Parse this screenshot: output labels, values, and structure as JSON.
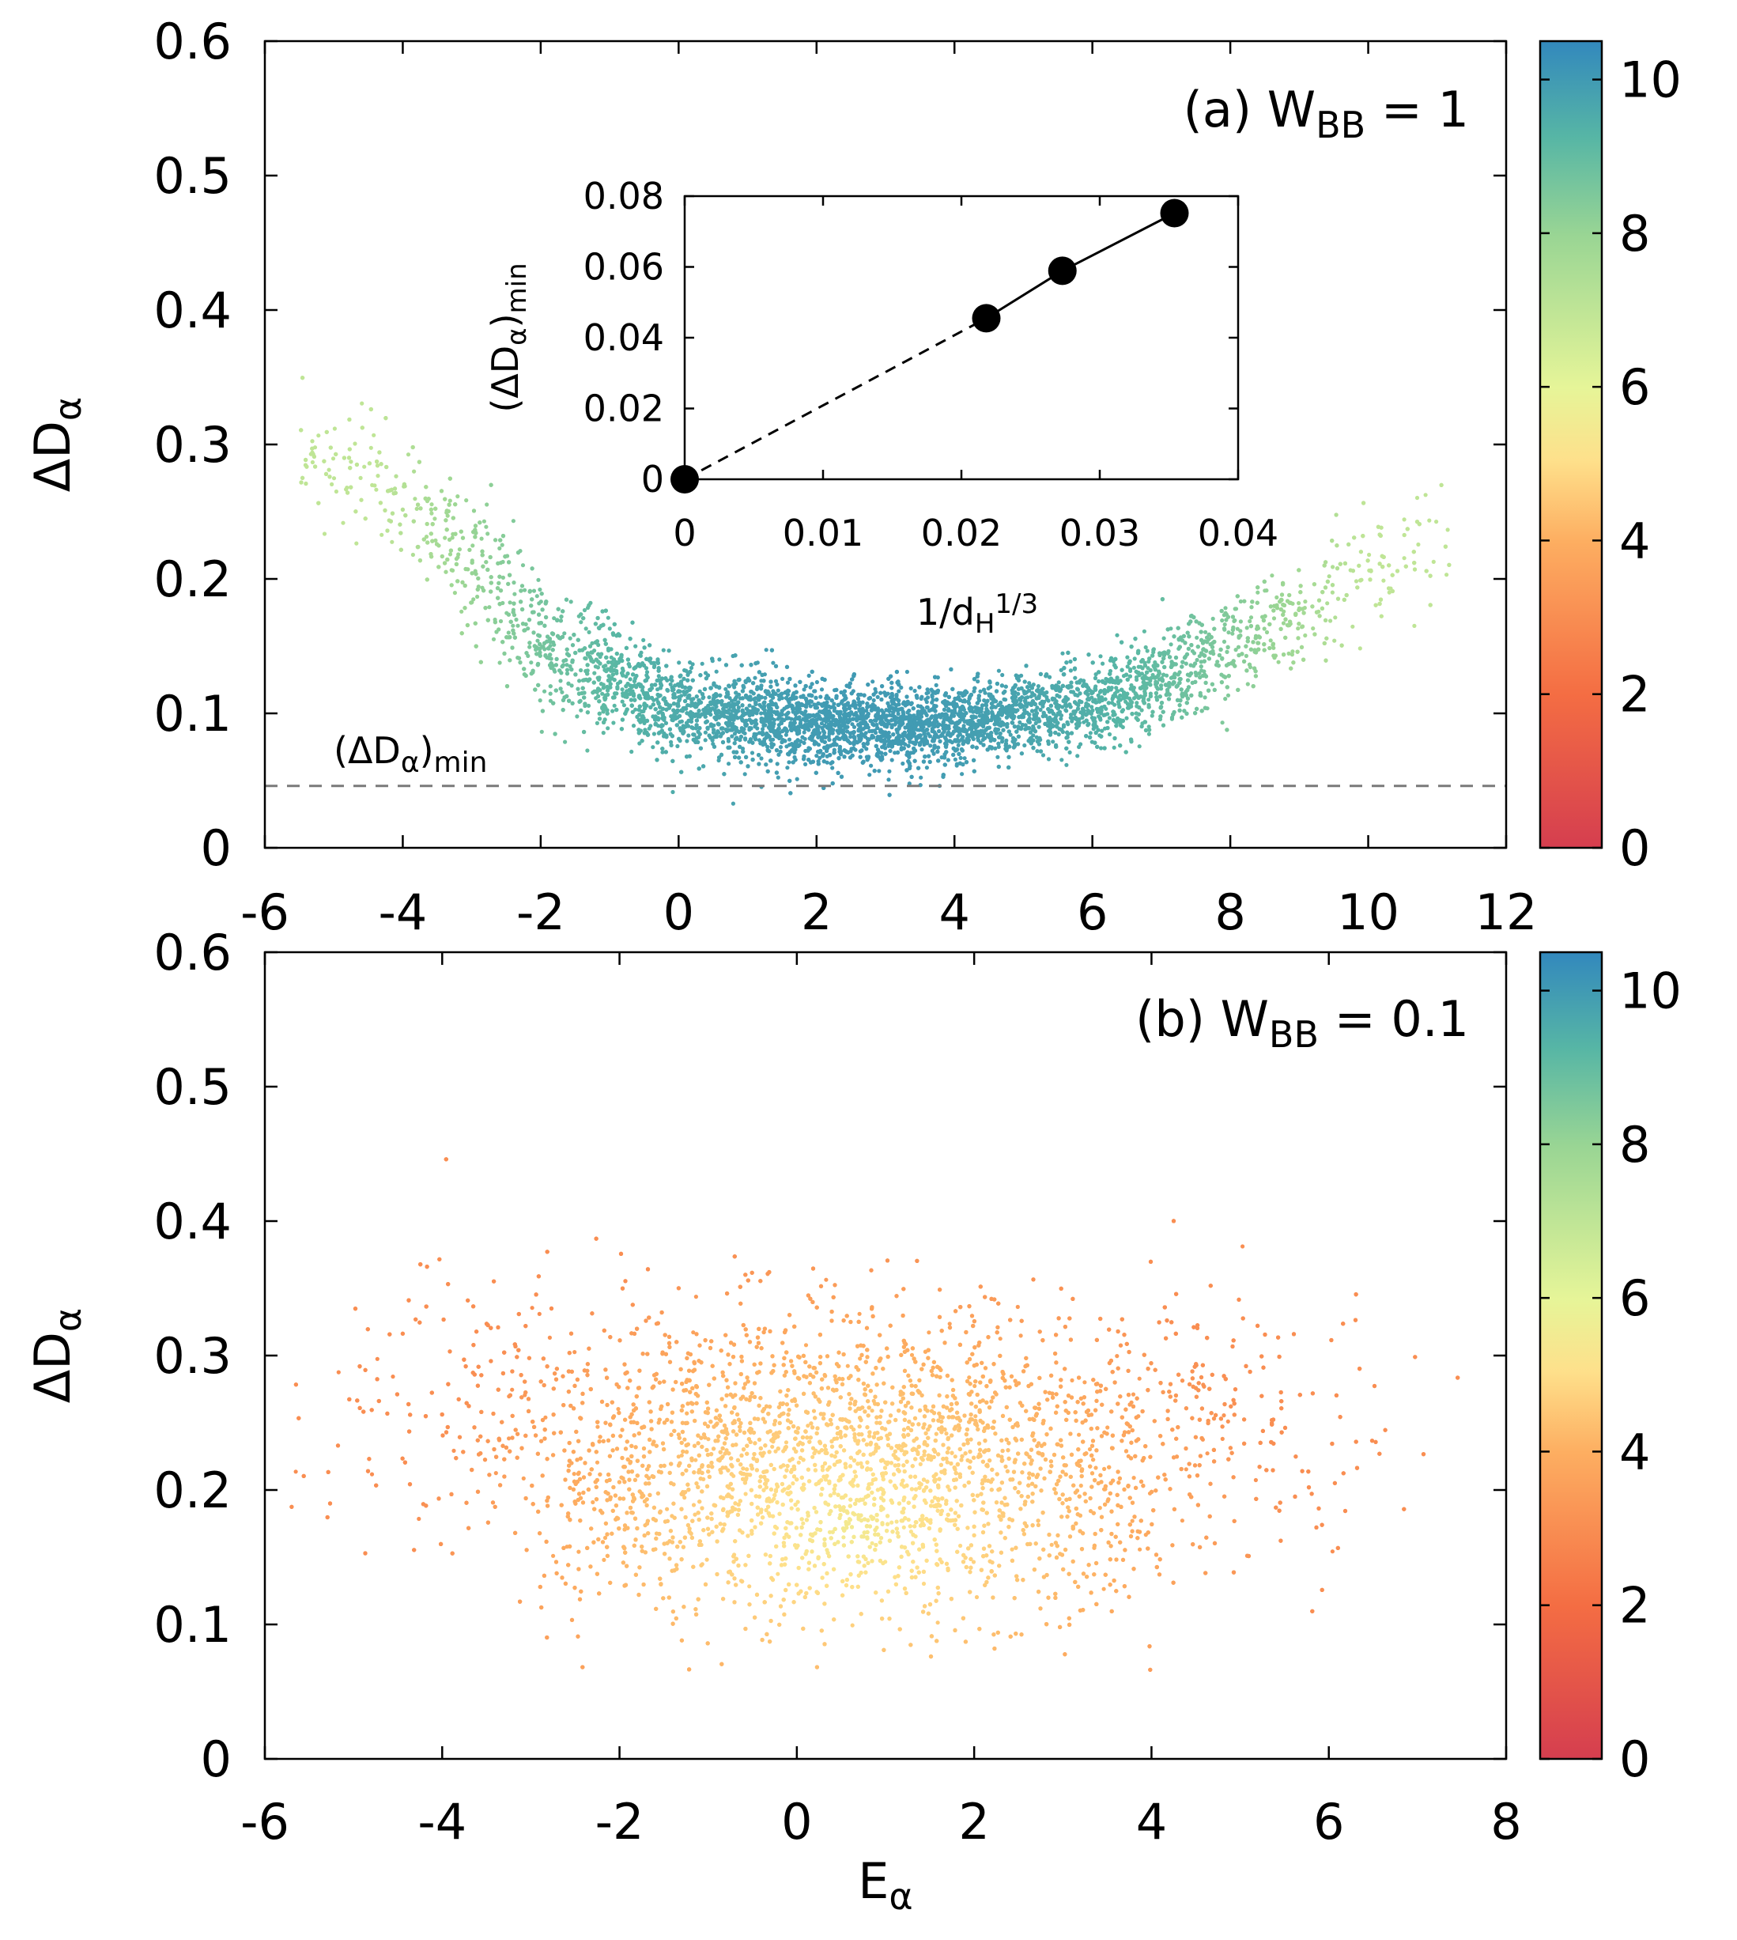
{
  "chart_data": [
    {
      "type": "scatter",
      "panel_label": "(a) W",
      "panel_sub": "BB",
      "panel_value": " = 1",
      "ylabel_main": "ΔD",
      "ylabel_sub": "α",
      "xlim": [
        -6,
        12
      ],
      "ylim": [
        0,
        0.6
      ],
      "xticks": [
        "-6",
        "-4",
        "-2",
        "0",
        "2",
        "4",
        "6",
        "8",
        "10",
        "12"
      ],
      "yticks": [
        "0",
        "0.1",
        "0.2",
        "0.3",
        "0.4",
        "0.5",
        "0.6"
      ],
      "colorbar": {
        "range": [
          0,
          10.5
        ],
        "ticks": [
          "0",
          "2",
          "4",
          "6",
          "8",
          "10"
        ]
      },
      "threshold_line": {
        "y": 0.046,
        "label_main": "(ΔD",
        "label_sub": "α",
        "label_close": ")",
        "label_sub2": "min",
        "style": "dashed",
        "color": "#7a7a7a"
      },
      "scatter_envelope": {
        "points_approx": 90000,
        "x_range": [
          -5.5,
          11.2
        ],
        "lower_edge": [
          [
            -4.5,
            0.24
          ],
          [
            -3,
            0.15
          ],
          [
            -2,
            0.1
          ],
          [
            0,
            0.066
          ],
          [
            2,
            0.056
          ],
          [
            4,
            0.058
          ],
          [
            6,
            0.07
          ],
          [
            8,
            0.1
          ],
          [
            10,
            0.15
          ]
        ],
        "upper_edge": [
          [
            -4.5,
            0.33
          ],
          [
            -3,
            0.27
          ],
          [
            -2,
            0.2
          ],
          [
            0,
            0.14
          ],
          [
            2,
            0.125
          ],
          [
            4,
            0.125
          ],
          [
            6,
            0.14
          ],
          [
            8,
            0.19
          ],
          [
            10,
            0.26
          ]
        ],
        "color_value_center": 10,
        "color_value_edges": 7
      },
      "inset": {
        "type": "line",
        "xlabel_main": "1/d",
        "xlabel_sub": "H",
        "xlabel_sup": "1/3",
        "ylabel_main": "(ΔD",
        "ylabel_sub": "α",
        "ylabel_close": ")",
        "ylabel_sub2": "min",
        "xlim": [
          0,
          0.04
        ],
        "ylim": [
          0,
          0.08
        ],
        "xticks": [
          "0",
          "0.01",
          "0.02",
          "0.03",
          "0.04"
        ],
        "yticks": [
          "0",
          "0.02",
          "0.04",
          "0.06",
          "0.08"
        ],
        "points": [
          {
            "x": 0.0,
            "y": 0.0
          },
          {
            "x": 0.0218,
            "y": 0.0455
          },
          {
            "x": 0.0273,
            "y": 0.0589
          },
          {
            "x": 0.0354,
            "y": 0.0752
          }
        ],
        "solid_segment": "measured points",
        "dashed_segment": "extrapolation to 0"
      }
    },
    {
      "type": "scatter",
      "panel_label": "(b) W",
      "panel_sub": "BB",
      "panel_value": " = 0.1",
      "ylabel_main": "ΔD",
      "ylabel_sub": "α",
      "xlabel_main": "E",
      "xlabel_sub": "α",
      "xlim": [
        -6,
        8
      ],
      "ylim": [
        0,
        0.6
      ],
      "xticks": [
        "-6",
        "-4",
        "-2",
        "0",
        "2",
        "4",
        "6",
        "8"
      ],
      "yticks": [
        "0",
        "0.1",
        "0.2",
        "0.3",
        "0.4",
        "0.5",
        "0.6"
      ],
      "colorbar": {
        "range": [
          0,
          10.5
        ],
        "ticks": [
          "0",
          "2",
          "4",
          "6",
          "8",
          "10"
        ]
      },
      "scatter_envelope": {
        "points_approx": 90000,
        "x_range": [
          -5.8,
          7.9
        ],
        "y_center": 0.22,
        "y_spread": 0.1,
        "color_value_center": 5.5,
        "color_value_edges": 3
      }
    }
  ]
}
